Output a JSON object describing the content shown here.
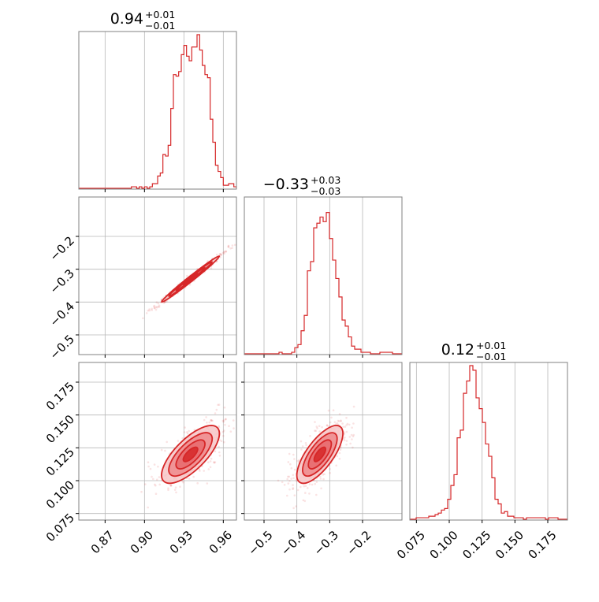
{
  "colors": {
    "series": "#d62728",
    "fill_light": "#f7c6c7",
    "fill_mid": "#ee8a8c",
    "grid": "#b8b8b8",
    "frame": "#808080"
  },
  "chart_data": {
    "type": "corner",
    "parameters": [
      {
        "title": {
          "median": "0.94",
          "plus": "+0.01",
          "minus": "−0.01"
        },
        "range": [
          0.85,
          0.97
        ],
        "ticks": [
          0.87,
          0.9,
          0.93,
          0.96
        ],
        "tick_labels": [
          "0.87",
          "0.90",
          "0.93",
          "0.96"
        ]
      },
      {
        "title": {
          "median": "−0.33",
          "plus": "+0.03",
          "minus": "−0.03"
        },
        "range": [
          -0.56,
          -0.08
        ],
        "ticks": [
          -0.5,
          -0.4,
          -0.3,
          -0.2
        ],
        "tick_labels": [
          "−0.5",
          "−0.4",
          "−0.3",
          "−0.2"
        ]
      },
      {
        "title": {
          "median": "0.12",
          "plus": "+0.01",
          "minus": "−0.01"
        },
        "range": [
          0.07,
          0.19
        ],
        "ticks": [
          0.075,
          0.1,
          0.125,
          0.15,
          0.175
        ],
        "tick_labels": [
          "0.075",
          "0.100",
          "0.125",
          "0.150",
          "0.175"
        ]
      }
    ],
    "histograms": [
      {
        "param": 0,
        "counts": [
          0,
          0,
          0,
          0,
          0,
          0,
          0,
          0,
          0,
          0,
          0,
          0,
          0,
          0,
          0,
          0,
          0,
          0,
          0,
          0,
          0.01,
          0.01,
          0,
          0.01,
          0,
          0.01,
          0,
          0.01,
          0.03,
          0.03,
          0.08,
          0.1,
          0.22,
          0.21,
          0.28,
          0.52,
          0.74,
          0.73,
          0.76,
          0.87,
          0.93,
          0.86,
          0.83,
          0.92,
          0.92,
          1.0,
          0.9,
          0.8,
          0.74,
          0.72,
          0.45,
          0.3,
          0.15,
          0.11,
          0.07,
          0.02,
          0.02,
          0.03,
          0.03,
          0.01
        ]
      },
      {
        "param": 1,
        "counts": [
          0,
          0,
          0,
          0,
          0,
          0,
          0,
          0,
          0,
          0,
          0,
          0.01,
          0,
          0,
          0,
          0.01,
          0.04,
          0.06,
          0.15,
          0.25,
          0.54,
          0.6,
          0.82,
          0.85,
          0.89,
          0.86,
          0.92,
          0.75,
          0.61,
          0.49,
          0.37,
          0.22,
          0.18,
          0.11,
          0.05,
          0.03,
          0.03,
          0.01,
          0.01,
          0.01,
          0,
          0,
          0,
          0.01,
          0.01,
          0.01,
          0.01,
          0,
          0,
          0
        ]
      },
      {
        "param": 2,
        "counts": [
          0,
          0,
          0.01,
          0.01,
          0.01,
          0.01,
          0.02,
          0.02,
          0.03,
          0.04,
          0.06,
          0.07,
          0.13,
          0.22,
          0.29,
          0.53,
          0.58,
          0.82,
          0.9,
          1.0,
          0.97,
          0.79,
          0.72,
          0.63,
          0.49,
          0.41,
          0.27,
          0.13,
          0.1,
          0.04,
          0.05,
          0.02,
          0.02,
          0.01,
          0.01,
          0.01,
          0,
          0.01,
          0.01,
          0.01,
          0.01,
          0.01,
          0.01,
          0,
          0.01,
          0.01,
          0.01,
          0,
          0,
          0
        ]
      }
    ],
    "scatter_panels": [
      {
        "x_param": 0,
        "y_param": 1,
        "center": [
          0.935,
          -0.33
        ],
        "sd": [
          0.011,
          0.035
        ],
        "corr": 0.99
      },
      {
        "x_param": 0,
        "y_param": 2,
        "center": [
          0.935,
          0.12
        ],
        "sd": [
          0.011,
          0.011
        ],
        "corr": 0.72
      },
      {
        "x_param": 1,
        "y_param": 2,
        "center": [
          -0.33,
          0.12
        ],
        "sd": [
          0.035,
          0.011
        ],
        "corr": 0.72
      }
    ],
    "contour_levels": [
      0.5,
      1.0,
      1.5,
      2.0
    ],
    "grid": true
  }
}
